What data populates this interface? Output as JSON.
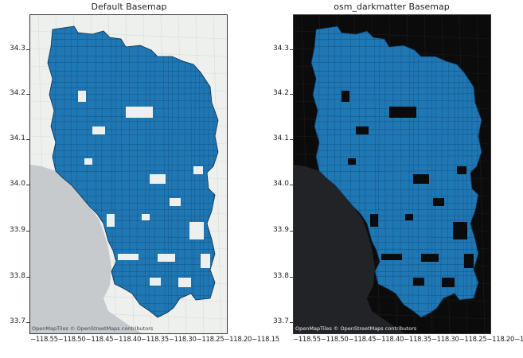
{
  "panels": [
    {
      "title": "Default Basemap",
      "attribution": "OpenMapTiles © OpenStreetMaps contributors",
      "basemap": "light",
      "colors": {
        "land": "#eef0ee",
        "water": "#c6cacd",
        "roads": "#d7dbd9",
        "fill": "#1f77b4",
        "edge": "#0b2f4d",
        "attribution": "#444444"
      }
    },
    {
      "title": "osm_darkmatter Basemap",
      "attribution": "OpenMapTiles © OpenStreetMaps contributors",
      "basemap": "dark",
      "colors": {
        "land": "#0b0b0b",
        "water": "#222326",
        "roads": "#1d1d1d",
        "fill": "#1f77b4",
        "edge": "#0b2f4d",
        "attribution": "#eeeeee"
      }
    }
  ],
  "axes": {
    "y_ticks": [
      "34.3",
      "34.2",
      "34.1",
      "34.0",
      "33.9",
      "33.8",
      "33.7"
    ],
    "x_ticks": "−118.55−118.50−118.45−118.40−118.35−118.30−118.25−118.20−118.15"
  }
}
